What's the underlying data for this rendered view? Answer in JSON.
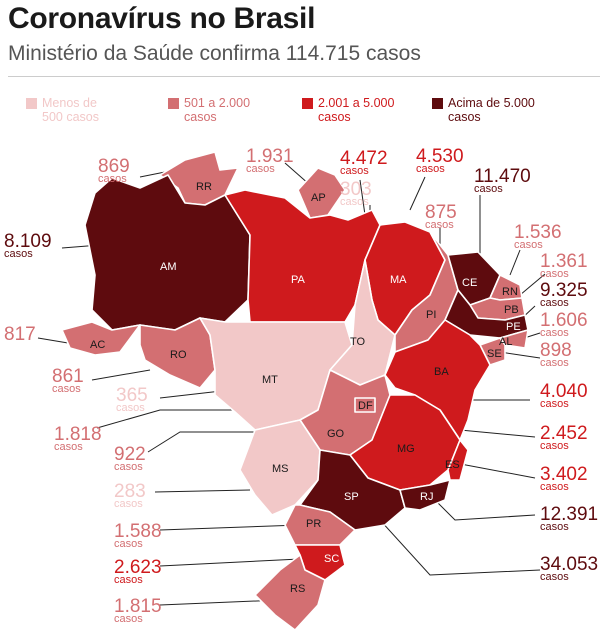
{
  "header": {
    "title": "Coronavírus no Brasil",
    "subtitle": "Ministério da Saúde confirma 114.715 casos"
  },
  "colors": {
    "tier1": "#f2c8c8",
    "tier2": "#d36f72",
    "tier3": "#cf1a1d",
    "tier4": "#5e0b0e"
  },
  "legend": [
    {
      "label": "Menos de\n500 casos",
      "tier": "tier1"
    },
    {
      "label": "501 a 2.000\ncasos",
      "tier": "tier2"
    },
    {
      "label": "2.001 a 5.000\ncasos",
      "tier": "tier3"
    },
    {
      "label": "Acima de 5.000\ncasos",
      "tier": "tier4"
    }
  ],
  "unit": "casos",
  "states": [
    {
      "abbr": "RR",
      "cases": "869",
      "tier": "tier2"
    },
    {
      "abbr": "AP",
      "cases": "1.931",
      "tier": "tier2"
    },
    {
      "abbr": "PA",
      "cases": "4.472",
      "tier": "tier3"
    },
    {
      "abbr": "MA",
      "cases": "4.530",
      "tier": "tier3"
    },
    {
      "abbr": "TO",
      "cases": "303",
      "tier": "tier1"
    },
    {
      "abbr": "PI",
      "cases": "875",
      "tier": "tier2"
    },
    {
      "abbr": "CE",
      "cases": "11.470",
      "tier": "tier4"
    },
    {
      "abbr": "RN",
      "cases": "1.536",
      "tier": "tier2"
    },
    {
      "abbr": "PB",
      "cases": "1.361",
      "tier": "tier2"
    },
    {
      "abbr": "PE",
      "cases": "9.325",
      "tier": "tier4"
    },
    {
      "abbr": "AL",
      "cases": "1.606",
      "tier": "tier2"
    },
    {
      "abbr": "SE",
      "cases": "898",
      "tier": "tier2"
    },
    {
      "abbr": "BA",
      "cases": "4.040",
      "tier": "tier3"
    },
    {
      "abbr": "AM",
      "cases": "8.109",
      "tier": "tier4"
    },
    {
      "abbr": "AC",
      "cases": "817",
      "tier": "tier2"
    },
    {
      "abbr": "RO",
      "cases": "861",
      "tier": "tier2"
    },
    {
      "abbr": "MT",
      "cases": "365",
      "tier": "tier1"
    },
    {
      "abbr": "DF",
      "cases": "1.818",
      "tier": "tier2"
    },
    {
      "abbr": "GO",
      "cases": "922",
      "tier": "tier2"
    },
    {
      "abbr": "MS",
      "cases": "283",
      "tier": "tier1"
    },
    {
      "abbr": "MG",
      "cases": "2.452",
      "tier": "tier3"
    },
    {
      "abbr": "ES",
      "cases": "3.402",
      "tier": "tier3"
    },
    {
      "abbr": "RJ",
      "cases": "12.391",
      "tier": "tier4"
    },
    {
      "abbr": "SP",
      "cases": "34.053",
      "tier": "tier4"
    },
    {
      "abbr": "PR",
      "cases": "1.588",
      "tier": "tier2"
    },
    {
      "abbr": "SC",
      "cases": "2.623",
      "tier": "tier3"
    },
    {
      "abbr": "RS",
      "cases": "1.815",
      "tier": "tier2"
    }
  ]
}
